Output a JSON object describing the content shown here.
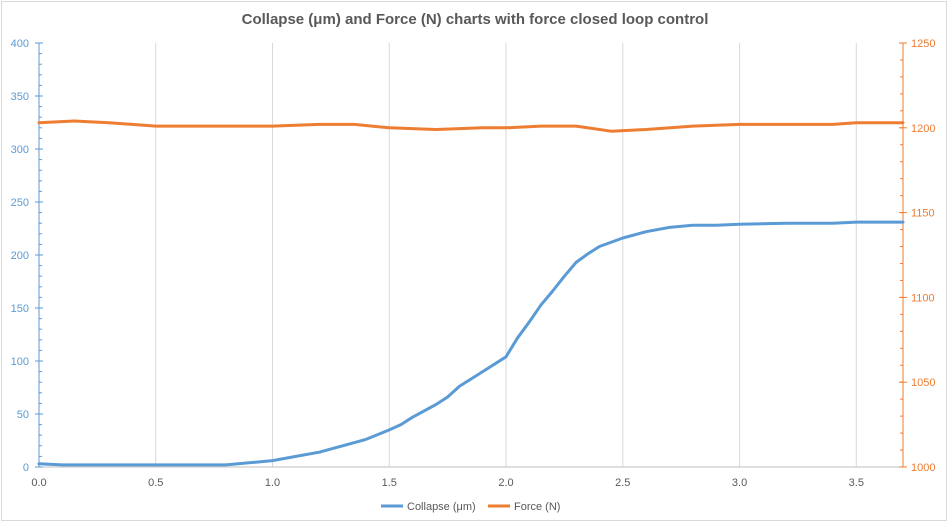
{
  "chart_data": {
    "type": "line",
    "title": "Collapse (μm) and Force (N) charts with force closed loop control",
    "x_ticks": [
      "0.0",
      "0.5",
      "1.0",
      "1.5",
      "2.0",
      "2.5",
      "3.0",
      "3.5"
    ],
    "xlim": [
      0,
      3.7
    ],
    "y_left": {
      "ylim": [
        0,
        400
      ],
      "ticks": [
        "0",
        "50",
        "100",
        "150",
        "200",
        "250",
        "300",
        "350",
        "400"
      ],
      "color": "#5b9bd5"
    },
    "y_right": {
      "ylim": [
        1000,
        1250
      ],
      "ticks": [
        "1000",
        "1050",
        "1100",
        "1150",
        "1200",
        "1250"
      ],
      "color": "#ed7d31"
    },
    "grid": "vertical",
    "legend_position": "bottom",
    "series": [
      {
        "name": "Collapse (μm)",
        "axis": "left",
        "color": "#5b9bd5",
        "x": [
          0,
          0.1,
          0.3,
          0.5,
          0.7,
          0.8,
          0.9,
          1.0,
          1.1,
          1.2,
          1.3,
          1.4,
          1.5,
          1.55,
          1.6,
          1.7,
          1.75,
          1.8,
          1.85,
          1.9,
          1.95,
          2.0,
          2.05,
          2.1,
          2.15,
          2.2,
          2.25,
          2.3,
          2.35,
          2.4,
          2.5,
          2.6,
          2.7,
          2.8,
          2.9,
          3.0,
          3.2,
          3.4,
          3.5,
          3.7
        ],
        "values": [
          3,
          2,
          2,
          2,
          2,
          2,
          4,
          6,
          10,
          14,
          20,
          26,
          35,
          40,
          47,
          59,
          66,
          76,
          83,
          90,
          97,
          104,
          122,
          137,
          153,
          166,
          180,
          193,
          201,
          208,
          216,
          222,
          226,
          228,
          228,
          229,
          230,
          230,
          231,
          231
        ]
      },
      {
        "name": "Force (N)",
        "axis": "right",
        "color": "#ed7d31",
        "x": [
          0,
          0.15,
          0.3,
          0.5,
          0.7,
          0.8,
          1.0,
          1.2,
          1.35,
          1.5,
          1.7,
          1.9,
          2.0,
          2.15,
          2.3,
          2.45,
          2.6,
          2.8,
          3.0,
          3.2,
          3.4,
          3.5,
          3.7
        ],
        "values": [
          1203,
          1204,
          1203,
          1201,
          1201,
          1201,
          1201,
          1202,
          1202,
          1200,
          1199,
          1200,
          1200,
          1201,
          1201,
          1198,
          1199,
          1201,
          1202,
          1202,
          1202,
          1203,
          1203
        ]
      }
    ]
  }
}
